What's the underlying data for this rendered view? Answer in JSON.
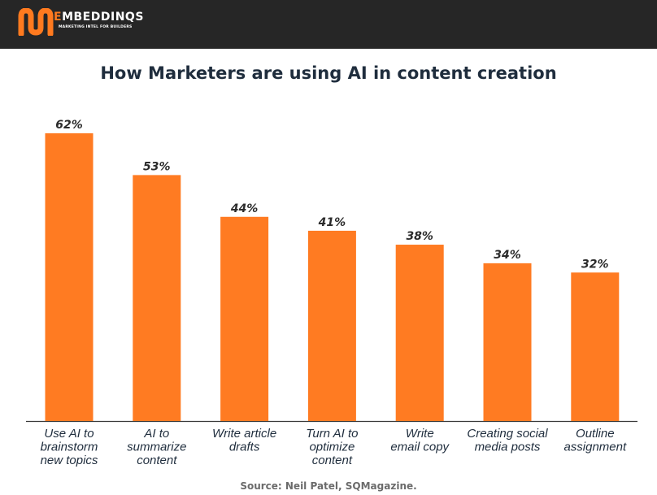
{
  "brand": {
    "mark": "M",
    "name_lead": "E",
    "name_rest": "MBEDDINQS",
    "tagline": "MARKETING INTEL FOR BUILDERS",
    "accent": "#ff7a1f"
  },
  "chart_data": {
    "type": "bar",
    "title": "How Marketers are using AI in content creation",
    "categories": [
      [
        "Use AI to",
        "brainstorm",
        "new topics"
      ],
      [
        "AI to",
        "summarize",
        "content"
      ],
      [
        "Write article",
        "drafts"
      ],
      [
        "Turn AI to",
        "optimize",
        "content"
      ],
      [
        "Write",
        "email copy"
      ],
      [
        "Creating social",
        "media posts"
      ],
      [
        "Outline",
        "assignment"
      ]
    ],
    "values": [
      62,
      53,
      44,
      41,
      38,
      34,
      32
    ],
    "value_labels": [
      "62%",
      "53%",
      "44%",
      "41%",
      "38%",
      "34%",
      "32%"
    ],
    "ylim": [
      0,
      62
    ],
    "bar_color": "#ff7b22",
    "grid": false,
    "xlabel": "",
    "ylabel": ""
  },
  "source": "Source: Neil Patel, SQMagazine."
}
